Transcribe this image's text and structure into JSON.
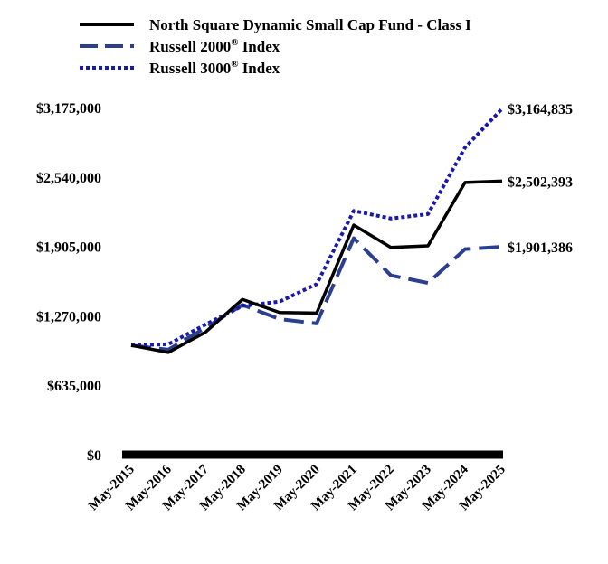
{
  "chart_data": {
    "type": "line",
    "title": "",
    "xlabel": "",
    "ylabel": "",
    "categories": [
      "May-2015",
      "May-2016",
      "May-2017",
      "May-2018",
      "May-2019",
      "May-2020",
      "May-2021",
      "May-2022",
      "May-2023",
      "May-2024",
      "May-2025"
    ],
    "ylim": [
      0,
      3175000
    ],
    "yticks": [
      0,
      635000,
      1270000,
      1905000,
      2540000,
      3175000
    ],
    "ytick_labels": [
      "$0",
      "$635,000",
      "$1,270,000",
      "$1,905,000",
      "$2,540,000",
      "$3,175,000"
    ],
    "legend_position": "top",
    "grid": false,
    "series": [
      {
        "name": "North Square Dynamic Small Cap Fund - Class I",
        "name_prefix": "North Square Dynamic Small Cap Fund - Class I",
        "name_sup": "",
        "name_suffix": "",
        "color": "#000000",
        "style": "solid",
        "values": [
          1000000,
          935000,
          1120000,
          1420000,
          1300000,
          1295000,
          2100000,
          1895000,
          1910000,
          2490000,
          2502393
        ],
        "end_label": "$2,502,393"
      },
      {
        "name": "Russell 2000® Index",
        "name_prefix": "Russell 2000",
        "name_sup": "®",
        "name_suffix": " Index",
        "color": "#2b3f8f",
        "style": "dashed",
        "values": [
          1000000,
          960000,
          1160000,
          1370000,
          1240000,
          1200000,
          1980000,
          1640000,
          1570000,
          1880000,
          1901386
        ],
        "end_label": "$1,901,386"
      },
      {
        "name": "Russell 3000® Index",
        "name_prefix": "Russell 3000",
        "name_sup": "®",
        "name_suffix": " Index",
        "color": "#1a1aa8",
        "style": "dotted",
        "values": [
          1000000,
          1010000,
          1190000,
          1360000,
          1400000,
          1560000,
          2230000,
          2160000,
          2200000,
          2810000,
          3164835
        ],
        "end_label": "$3,164,835"
      }
    ]
  }
}
